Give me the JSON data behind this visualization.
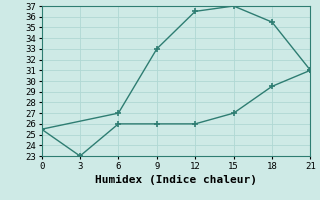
{
  "title": "",
  "xlabel": "Humidex (Indice chaleur)",
  "xlim": [
    0,
    21
  ],
  "ylim": [
    23,
    37
  ],
  "xticks": [
    0,
    3,
    6,
    9,
    12,
    15,
    18,
    21
  ],
  "yticks": [
    23,
    24,
    25,
    26,
    27,
    28,
    29,
    30,
    31,
    32,
    33,
    34,
    35,
    36,
    37
  ],
  "upper_x": [
    0,
    6,
    9,
    12,
    15,
    18,
    21
  ],
  "upper_y": [
    25.5,
    27,
    33,
    36.5,
    37,
    35.5,
    31
  ],
  "lower_x": [
    0,
    3,
    6,
    9,
    12,
    15,
    18,
    21
  ],
  "lower_y": [
    25.5,
    23,
    26,
    26,
    26,
    27,
    29.5,
    31
  ],
  "line_color": "#2e7d72",
  "bg_color": "#ceeae6",
  "grid_color": "#b0d8d4",
  "tick_fontsize": 6.5,
  "xlabel_fontsize": 8,
  "font_family": "monospace",
  "marker": "+",
  "markersize": 4.5,
  "linewidth": 1.0
}
